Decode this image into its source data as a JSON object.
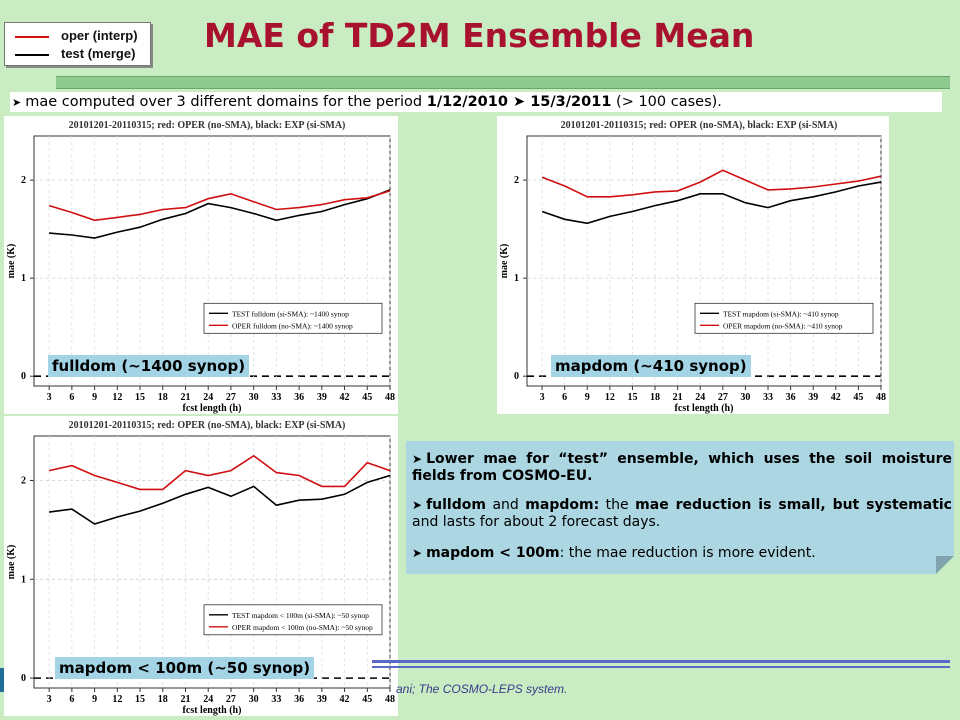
{
  "legend": {
    "oper": {
      "label": "oper (interp)",
      "color": "#d01010"
    },
    "test": {
      "label": "test (merge)",
      "color": "#000000"
    }
  },
  "title": "MAE of TD2M Ensemble Mean",
  "intro": {
    "prefix": "mae computed over 3 different domains for the period ",
    "start": "1/12/2010",
    "end": "15/3/2011",
    "suffix": " (> 100 cases)."
  },
  "notes": [
    {
      "bold": "Lower mae for “test” ensemble, which uses the soil moisture fields from COSMO-EU.",
      "normal": ""
    },
    {
      "b1": "fulldom",
      "t1": " and ",
      "b2": "mapdom:",
      "t2": " the ",
      "b3": "mae reduction is small, but systematic",
      "t3": " and lasts for about 2 forecast days."
    },
    {
      "b1": "mapdom < 100m",
      "t1": ": the mae reduction is more evident."
    }
  ],
  "footer": "ani; The COSMO-LEPS system.",
  "chart_data": [
    {
      "type": "line",
      "title": "20101201-20110315; red: OPER (no-SMA), black: EXP (si-SMA)",
      "panel_label": "fulldom (~1400 synop)",
      "xlabel": "fcst length (h)",
      "ylabel": "mae (K)",
      "x": [
        3,
        6,
        9,
        12,
        15,
        18,
        21,
        24,
        27,
        30,
        33,
        36,
        39,
        42,
        45,
        48
      ],
      "yticks": [
        0,
        1,
        2
      ],
      "ylim": [
        -0.1,
        2.45
      ],
      "series": [
        {
          "name": "TEST fulldom (si-SMA): ~1400 synop",
          "color": "#000000",
          "values": [
            1.46,
            1.44,
            1.41,
            1.47,
            1.52,
            1.6,
            1.66,
            1.76,
            1.72,
            1.66,
            1.59,
            1.64,
            1.68,
            1.75,
            1.81,
            1.9
          ]
        },
        {
          "name": "OPER fulldom (no-SMA): ~1400 synop",
          "color": "#d01010",
          "values": [
            1.74,
            1.67,
            1.59,
            1.62,
            1.65,
            1.7,
            1.72,
            1.81,
            1.86,
            1.78,
            1.7,
            1.72,
            1.75,
            1.8,
            1.82,
            1.89
          ]
        }
      ],
      "legend": "bottom-right"
    },
    {
      "type": "line",
      "title": "20101201-20110315; red: OPER (no-SMA), black: EXP (si-SMA)",
      "panel_label": "mapdom (~410 synop)",
      "xlabel": "fcst length (h)",
      "ylabel": "mae (K)",
      "x": [
        3,
        6,
        9,
        12,
        15,
        18,
        21,
        24,
        27,
        30,
        33,
        36,
        39,
        42,
        45,
        48
      ],
      "yticks": [
        0,
        1,
        2
      ],
      "ylim": [
        -0.1,
        2.45
      ],
      "series": [
        {
          "name": "TEST mapdom (si-SMA): ~410 synop",
          "color": "#000000",
          "values": [
            1.68,
            1.6,
            1.56,
            1.63,
            1.68,
            1.74,
            1.79,
            1.86,
            1.86,
            1.77,
            1.72,
            1.79,
            1.83,
            1.88,
            1.94,
            1.98
          ]
        },
        {
          "name": "OPER mapdom (no-SMA): ~410 synop",
          "color": "#d01010",
          "values": [
            2.03,
            1.94,
            1.83,
            1.83,
            1.85,
            1.88,
            1.89,
            1.98,
            2.1,
            2.0,
            1.9,
            1.91,
            1.93,
            1.96,
            1.99,
            2.04
          ]
        }
      ],
      "legend": "bottom-right"
    },
    {
      "type": "line",
      "title": "20101201-20110315; red: OPER (no-SMA), black: EXP (si-SMA)",
      "panel_label": "mapdom < 100m (~50 synop)",
      "xlabel": "fcst length (h)",
      "ylabel": "mae (K)",
      "x": [
        3,
        6,
        9,
        12,
        15,
        18,
        21,
        24,
        27,
        30,
        33,
        36,
        39,
        42,
        45,
        48
      ],
      "yticks": [
        0,
        1,
        2
      ],
      "ylim": [
        -0.1,
        2.45
      ],
      "series": [
        {
          "name": "TEST mapdom < 100m (si-SMA): ~50 synop",
          "color": "#000000",
          "values": [
            1.68,
            1.71,
            1.56,
            1.63,
            1.69,
            1.77,
            1.86,
            1.93,
            1.84,
            1.94,
            1.75,
            1.8,
            1.81,
            1.86,
            1.98,
            2.05
          ]
        },
        {
          "name": "OPER mapdom < 100m (no-SMA): ~50 synop",
          "color": "#d01010",
          "values": [
            2.1,
            2.15,
            2.05,
            1.98,
            1.91,
            1.91,
            2.1,
            2.05,
            2.1,
            2.25,
            2.08,
            2.05,
            1.94,
            1.94,
            2.18,
            2.1
          ]
        }
      ],
      "legend": "bottom-right"
    }
  ]
}
